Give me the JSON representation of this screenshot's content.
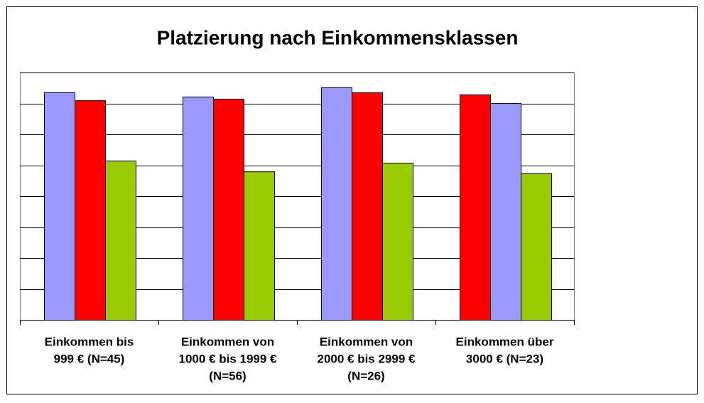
{
  "chart_data": {
    "type": "bar",
    "title": "Platzierung nach Einkommensklassen",
    "categories": [
      [
        "Einkommen bis",
        "999 € (N=45)"
      ],
      [
        "Einkommen von",
        "1000 € bis 1999 €",
        "(N=56)"
      ],
      [
        "Einkommen von",
        "2000 € bis 2999 €",
        "(N=26)"
      ],
      [
        "Einkommen über",
        "3000 € (N=23)"
      ]
    ],
    "series": [
      {
        "colors": [
          "#9999ff",
          "#9999ff",
          "#9999ff",
          "#ff0000"
        ],
        "values": [
          7.36,
          7.22,
          7.52,
          7.29
        ]
      },
      {
        "colors": [
          "#ff0000",
          "#ff0000",
          "#ff0000",
          "#9999ff"
        ],
        "values": [
          7.1,
          7.15,
          7.36,
          7.01
        ]
      },
      {
        "colors": [
          "#99cc00",
          "#99cc00",
          "#99cc00",
          "#99cc00"
        ],
        "values": [
          5.15,
          4.8,
          5.08,
          4.74
        ]
      }
    ],
    "ylim": [
      0,
      8
    ],
    "yticks": [
      0,
      1,
      2,
      3,
      4,
      5,
      6,
      7,
      8
    ],
    "grid": true
  }
}
